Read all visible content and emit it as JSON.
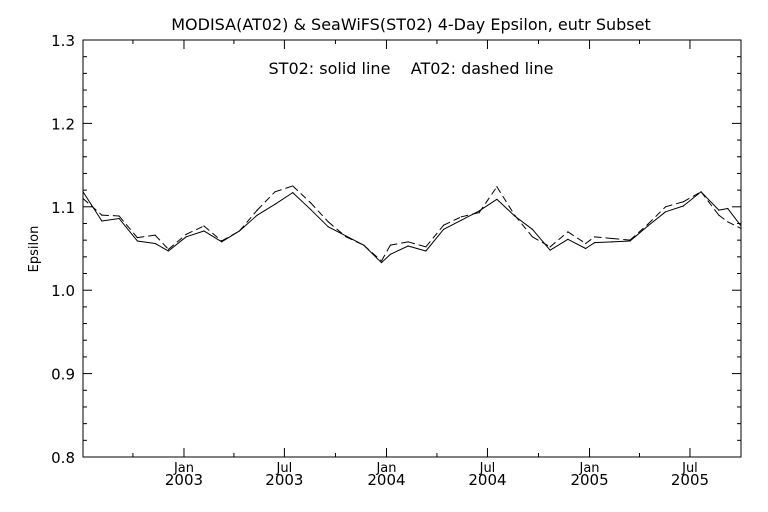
{
  "chart_data": {
    "type": "line",
    "title": "MODISA(AT02) & SeaWiFS(ST02) 4-Day Epsilon, eutr Subset",
    "annotation": "ST02: solid line    AT02: dashed line",
    "xlabel": "",
    "ylabel": "Epsilon",
    "ylim": [
      0.8,
      1.3
    ],
    "yticks": [
      {
        "value": 0.8,
        "label": "0.8"
      },
      {
        "value": 0.9,
        "label": "0.9"
      },
      {
        "value": 1.0,
        "label": "1.0"
      },
      {
        "value": 1.1,
        "label": "1.1"
      },
      {
        "value": 1.2,
        "label": "1.2"
      },
      {
        "value": 1.3,
        "label": "1.3"
      }
    ],
    "xlim": [
      "2002-07-03",
      "2005-10-01"
    ],
    "xticks": [
      {
        "date": "2003-01-01",
        "month": "Jan",
        "year": "2003"
      },
      {
        "date": "2003-07-01",
        "month": "Jul",
        "year": "2003"
      },
      {
        "date": "2004-01-01",
        "month": "Jan",
        "year": "2004"
      },
      {
        "date": "2004-07-01",
        "month": "Jul",
        "year": "2004"
      },
      {
        "date": "2005-01-01",
        "month": "Jan",
        "year": "2005"
      },
      {
        "date": "2005-07-01",
        "month": "Jul",
        "year": "2005"
      }
    ],
    "xminor": [
      "2002-10-01",
      "2003-04-01",
      "2003-10-01",
      "2004-04-01",
      "2004-10-01",
      "2005-04-01",
      "2005-10-01"
    ],
    "grid": false,
    "series": [
      {
        "name": "ST02",
        "style": "solid",
        "points": [
          [
            "2002-07-03",
            1.118
          ],
          [
            "2002-08-06",
            1.083
          ],
          [
            "2002-09-06",
            1.086
          ],
          [
            "2002-10-09",
            1.059
          ],
          [
            "2002-11-10",
            1.056
          ],
          [
            "2002-12-04",
            1.047
          ],
          [
            "2003-01-05",
            1.064
          ],
          [
            "2003-02-06",
            1.071
          ],
          [
            "2003-03-10",
            1.058
          ],
          [
            "2003-04-11",
            1.071
          ],
          [
            "2003-05-13",
            1.09
          ],
          [
            "2003-06-14",
            1.103
          ],
          [
            "2003-07-16",
            1.117
          ],
          [
            "2003-08-17",
            1.097
          ],
          [
            "2003-09-18",
            1.076
          ],
          [
            "2003-10-20",
            1.065
          ],
          [
            "2003-11-21",
            1.054
          ],
          [
            "2003-12-23",
            1.033
          ],
          [
            "2004-01-08",
            1.043
          ],
          [
            "2004-02-09",
            1.053
          ],
          [
            "2004-03-12",
            1.047
          ],
          [
            "2004-04-13",
            1.073
          ],
          [
            "2004-05-15",
            1.084
          ],
          [
            "2004-06-16",
            1.095
          ],
          [
            "2004-07-18",
            1.109
          ],
          [
            "2004-08-19",
            1.089
          ],
          [
            "2004-09-20",
            1.073
          ],
          [
            "2004-10-22",
            1.048
          ],
          [
            "2004-11-23",
            1.061
          ],
          [
            "2004-12-25",
            1.05
          ],
          [
            "2005-01-10",
            1.057
          ],
          [
            "2005-02-11",
            1.058
          ],
          [
            "2005-03-15",
            1.059
          ],
          [
            "2005-04-16",
            1.077
          ],
          [
            "2005-05-18",
            1.094
          ],
          [
            "2005-06-19",
            1.101
          ],
          [
            "2005-07-21",
            1.118
          ],
          [
            "2005-08-22",
            1.096
          ],
          [
            "2005-09-07",
            1.098
          ],
          [
            "2005-10-01",
            1.077
          ]
        ]
      },
      {
        "name": "AT02",
        "style": "dashed",
        "points": [
          [
            "2002-07-03",
            1.11
          ],
          [
            "2002-08-06",
            1.09
          ],
          [
            "2002-09-06",
            1.089
          ],
          [
            "2002-10-09",
            1.063
          ],
          [
            "2002-11-10",
            1.066
          ],
          [
            "2002-12-04",
            1.049
          ],
          [
            "2003-01-05",
            1.067
          ],
          [
            "2003-02-06",
            1.077
          ],
          [
            "2003-03-10",
            1.059
          ],
          [
            "2003-04-11",
            1.071
          ],
          [
            "2003-05-13",
            1.096
          ],
          [
            "2003-06-14",
            1.118
          ],
          [
            "2003-07-16",
            1.125
          ],
          [
            "2003-08-17",
            1.105
          ],
          [
            "2003-09-18",
            1.082
          ],
          [
            "2003-10-20",
            1.064
          ],
          [
            "2003-11-21",
            1.054
          ],
          [
            "2003-12-23",
            1.035
          ],
          [
            "2004-01-08",
            1.054
          ],
          [
            "2004-02-09",
            1.058
          ],
          [
            "2004-03-12",
            1.052
          ],
          [
            "2004-04-13",
            1.078
          ],
          [
            "2004-05-15",
            1.088
          ],
          [
            "2004-06-16",
            1.093
          ],
          [
            "2004-07-18",
            1.124
          ],
          [
            "2004-08-19",
            1.09
          ],
          [
            "2004-09-20",
            1.064
          ],
          [
            "2004-10-22",
            1.052
          ],
          [
            "2004-11-23",
            1.07
          ],
          [
            "2004-12-25",
            1.056
          ],
          [
            "2005-01-10",
            1.064
          ],
          [
            "2005-02-11",
            1.062
          ],
          [
            "2005-03-15",
            1.06
          ],
          [
            "2005-04-16",
            1.079
          ],
          [
            "2005-05-18",
            1.1
          ],
          [
            "2005-06-19",
            1.106
          ],
          [
            "2005-07-21",
            1.118
          ],
          [
            "2005-08-22",
            1.09
          ],
          [
            "2005-09-07",
            1.082
          ],
          [
            "2005-10-01",
            1.074
          ]
        ]
      }
    ]
  }
}
